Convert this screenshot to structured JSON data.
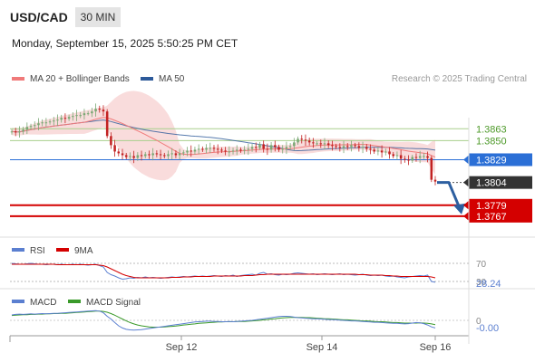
{
  "header": {
    "symbol": "USD/CAD",
    "timeframe": "30 MIN",
    "datetime": "Monday, September 15, 2025 5:50:25 PM CET"
  },
  "legend": {
    "ma20": "MA 20 + Bollinger Bands",
    "ma50": "MA 50",
    "copyright": "Research © 2025 Trading Central"
  },
  "colors": {
    "ma20": "#f07a7a",
    "ma50": "#2d5a9a",
    "bollinger_fill": "#f8d6d6",
    "up_candle": "#7aa874",
    "down_candle": "#c22222",
    "resistance": "#a8cf8c",
    "pivot": "#2b6fd6",
    "support": "#d40000",
    "current": "#333333",
    "rsi": "#5b7fd0",
    "rsi_ma": "#d40000",
    "macd": "#5b7fd0",
    "macd_signal": "#3a9a2a"
  },
  "chart_data": [
    {
      "type": "candlestick",
      "title": "USD/CAD",
      "ylim": [
        1.3748,
        1.3905
      ],
      "levels": [
        {
          "value": 1.3863,
          "label": "1.3863",
          "kind": "resistance"
        },
        {
          "value": 1.385,
          "label": "1.3850",
          "kind": "resistance"
        },
        {
          "value": 1.3829,
          "label": "1.3829",
          "kind": "pivot"
        },
        {
          "value": 1.3804,
          "label": "1.3804",
          "kind": "current"
        },
        {
          "value": 1.3779,
          "label": "1.3779",
          "kind": "support"
        },
        {
          "value": 1.3767,
          "label": "1.3767",
          "kind": "support"
        }
      ],
      "forecast_arrow": {
        "from": 1.3804,
        "to": 1.3772
      },
      "x_ticks": [
        "Sep 12",
        "Sep 14",
        "Sep 16"
      ],
      "close": [
        1.386,
        1.3859,
        1.386,
        1.3862,
        1.3865,
        1.3866,
        1.3867,
        1.3869,
        1.387,
        1.387,
        1.3871,
        1.3872,
        1.3873,
        1.3875,
        1.3874,
        1.3876,
        1.3877,
        1.3878,
        1.3878,
        1.388,
        1.388,
        1.3882,
        1.3885,
        1.3884,
        1.3882,
        1.3855,
        1.3845,
        1.3838,
        1.3836,
        1.3834,
        1.3832,
        1.3833,
        1.3831,
        1.3834,
        1.3833,
        1.3835,
        1.3834,
        1.3836,
        1.3835,
        1.3834,
        1.3833,
        1.3835,
        1.3836,
        1.3834,
        1.3836,
        1.3837,
        1.3839,
        1.3838,
        1.384,
        1.3841,
        1.384,
        1.3842,
        1.3842,
        1.3841,
        1.384,
        1.3839,
        1.3838,
        1.3838,
        1.3839,
        1.384,
        1.3839,
        1.384,
        1.3841,
        1.3843,
        1.3842,
        1.3846,
        1.3841,
        1.384,
        1.3845,
        1.3843,
        1.384,
        1.3841,
        1.3843,
        1.3844,
        1.3848,
        1.3852,
        1.3851,
        1.385,
        1.3848,
        1.3847,
        1.3847,
        1.3846,
        1.3847,
        1.3845,
        1.3844,
        1.3843,
        1.3842,
        1.3844,
        1.3843,
        1.3845,
        1.3844,
        1.3842,
        1.3843,
        1.3841,
        1.384,
        1.3838,
        1.3839,
        1.3837,
        1.3838,
        1.3835,
        1.3833,
        1.3834,
        1.383,
        1.3829,
        1.3828,
        1.3832,
        1.3831,
        1.3833,
        1.3833,
        1.3831,
        1.3807,
        1.3805
      ]
    },
    {
      "type": "line",
      "title": "RSI",
      "series": [
        {
          "name": "RSI"
        },
        {
          "name": "9MA"
        }
      ],
      "y_ticks": [
        70,
        30
      ],
      "current_value": "28.24",
      "rsi": [
        70,
        69,
        68,
        68,
        69,
        70,
        69,
        68,
        68,
        67,
        68,
        68,
        67,
        68,
        67,
        67,
        68,
        67,
        68,
        67,
        66,
        67,
        68,
        65,
        62,
        50,
        45,
        42,
        38,
        35,
        36,
        38,
        37,
        39,
        38,
        40,
        38,
        39,
        38,
        37,
        38,
        39,
        40,
        39,
        40,
        41,
        40,
        41,
        42,
        41,
        42,
        41,
        42,
        43,
        42,
        41,
        43,
        42,
        44,
        41,
        43,
        44,
        45,
        46,
        44,
        48,
        50,
        46,
        47,
        45,
        44,
        46,
        45,
        46,
        48,
        49,
        48,
        47,
        46,
        47,
        45,
        46,
        47,
        46,
        45,
        46,
        47,
        45,
        46,
        45,
        44,
        45,
        46,
        44,
        43,
        44,
        43,
        44,
        42,
        41,
        42,
        40,
        39,
        38,
        40,
        41,
        42,
        43,
        42,
        44,
        30,
        28.24
      ],
      "rsi_ma": [
        68,
        68,
        68,
        68,
        68,
        68,
        68,
        68,
        68,
        68,
        68,
        68,
        67,
        67,
        67,
        67,
        67,
        67,
        67,
        67,
        67,
        67,
        67,
        66,
        65,
        62,
        58,
        54,
        50,
        46,
        43,
        41,
        39,
        38,
        38,
        38,
        38,
        38,
        38,
        38,
        38,
        38,
        39,
        39,
        39,
        40,
        40,
        40,
        41,
        41,
        41,
        41,
        41,
        42,
        42,
        42,
        42,
        42,
        42,
        42,
        42,
        43,
        43,
        43,
        44,
        45,
        45,
        46,
        46,
        46,
        46,
        46,
        46,
        46,
        46,
        46,
        46,
        46,
        46,
        46,
        46,
        46,
        46,
        46,
        46,
        46,
        46,
        46,
        46,
        46,
        46,
        45,
        45,
        45,
        44,
        44,
        44,
        44,
        43,
        43,
        42,
        42,
        41,
        41,
        41,
        41,
        41,
        41,
        41,
        41,
        40,
        38
      ]
    },
    {
      "type": "line",
      "title": "MACD",
      "series": [
        {
          "name": "MACD"
        },
        {
          "name": "MACD Signal"
        }
      ],
      "y_ticks": [
        0
      ],
      "current_value": "-0.00",
      "macd": [
        2,
        2.2,
        2.3,
        2.2,
        2.3,
        2.4,
        2.3,
        2.4,
        2.5,
        2.4,
        2.5,
        2.6,
        2.6,
        2.7,
        2.8,
        2.9,
        3.0,
        3.1,
        3.2,
        3.3,
        3.4,
        3.5,
        3.6,
        3.4,
        2.8,
        1.5,
        0.5,
        -0.8,
        -2.0,
        -2.8,
        -3.3,
        -3.5,
        -3.6,
        -3.5,
        -3.4,
        -3.2,
        -3.0,
        -2.8,
        -2.6,
        -2.4,
        -2.2,
        -2.0,
        -1.8,
        -1.6,
        -1.4,
        -1.2,
        -1.0,
        -0.8,
        -0.6,
        -0.5,
        -0.4,
        -0.3,
        -0.3,
        -0.4,
        -0.4,
        -0.5,
        -0.5,
        -0.4,
        -0.5,
        -0.4,
        -0.3,
        -0.2,
        -0.1,
        0.0,
        0.2,
        0.4,
        0.6,
        0.8,
        1.0,
        1.2,
        1.4,
        1.5,
        1.5,
        1.4,
        1.2,
        1.0,
        0.9,
        0.8,
        0.7,
        0.6,
        0.6,
        0.5,
        0.4,
        0.3,
        0.3,
        0.2,
        0.1,
        0.0,
        -0.1,
        -0.2,
        -0.2,
        -0.3,
        -0.4,
        -0.5,
        -0.6,
        -0.7,
        -0.7,
        -0.8,
        -0.9,
        -1.0,
        -1.1,
        -1.1,
        -1.2,
        -1.3,
        -1.2,
        -1.0,
        -0.8,
        -0.9,
        -1.2,
        -1.7,
        -2.4,
        -2.8
      ],
      "macd_signal": [
        1.8,
        1.9,
        2.0,
        2.1,
        2.1,
        2.2,
        2.2,
        2.3,
        2.3,
        2.4,
        2.4,
        2.5,
        2.5,
        2.6,
        2.6,
        2.7,
        2.8,
        2.9,
        3.0,
        3.1,
        3.2,
        3.3,
        3.4,
        3.4,
        3.3,
        3.0,
        2.5,
        1.9,
        1.2,
        0.5,
        -0.2,
        -0.8,
        -1.3,
        -1.7,
        -2.0,
        -2.2,
        -2.4,
        -2.5,
        -2.5,
        -2.5,
        -2.4,
        -2.3,
        -2.2,
        -2.1,
        -1.9,
        -1.7,
        -1.6,
        -1.4,
        -1.3,
        -1.1,
        -1.0,
        -0.9,
        -0.8,
        -0.7,
        -0.6,
        -0.6,
        -0.5,
        -0.5,
        -0.5,
        -0.4,
        -0.4,
        -0.4,
        -0.3,
        -0.2,
        -0.1,
        0.0,
        0.2,
        0.3,
        0.5,
        0.6,
        0.8,
        0.9,
        1.0,
        1.1,
        1.1,
        1.1,
        1.1,
        1.0,
        1.0,
        0.9,
        0.8,
        0.7,
        0.6,
        0.6,
        0.5,
        0.4,
        0.3,
        0.2,
        0.2,
        0.1,
        0.0,
        -0.1,
        -0.2,
        -0.2,
        -0.3,
        -0.4,
        -0.5,
        -0.5,
        -0.6,
        -0.7,
        -0.8,
        -0.8,
        -0.9,
        -1.0,
        -1.0,
        -1.0,
        -1.0,
        -0.9,
        -1.0,
        -1.1,
        -1.3,
        -1.6
      ]
    }
  ]
}
